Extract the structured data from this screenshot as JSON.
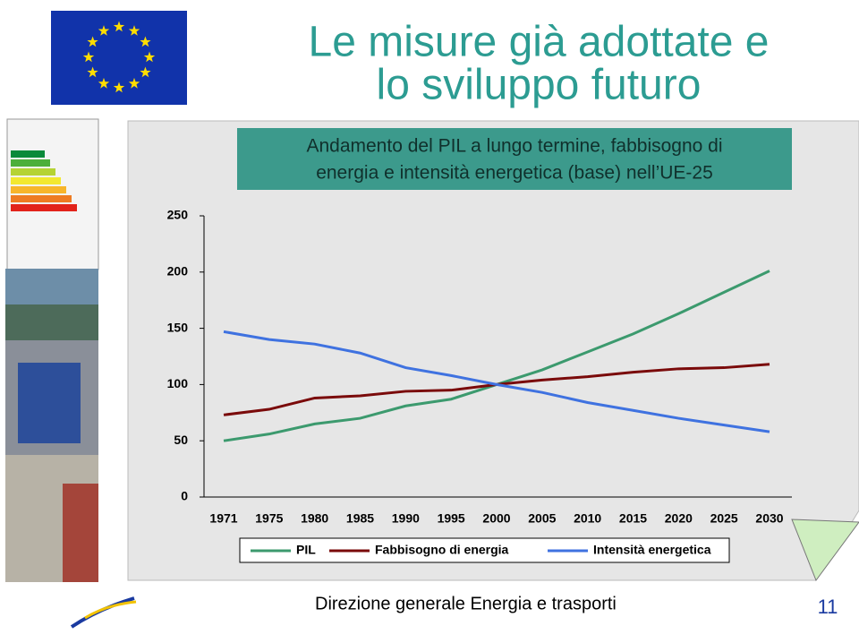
{
  "slide": {
    "title_line1": "Le misure già adottate e",
    "title_line2": "lo sviluppo futuro",
    "footer": "Direzione generale Energia e trasporti",
    "page_number": "11"
  },
  "chart_data": {
    "type": "line",
    "title_line1": "Andamento del PIL a lungo termine, fabbisogno di",
    "title_line2": "energia e intensità energetica (base) nell’UE-25",
    "categories": [
      "1971",
      "1975",
      "1980",
      "1985",
      "1990",
      "1995",
      "2000",
      "2005",
      "2010",
      "2015",
      "2020",
      "2025",
      "2030"
    ],
    "series": [
      {
        "name": "PIL",
        "color": "#3c9a6e",
        "values": [
          50,
          56,
          65,
          70,
          81,
          87,
          100,
          113,
          129,
          145,
          163,
          182,
          201
        ]
      },
      {
        "name": "Fabbisogno di energia",
        "color": "#7a0a0a",
        "values": [
          73,
          78,
          88,
          90,
          94,
          95,
          100,
          104,
          107,
          111,
          114,
          115,
          118
        ]
      },
      {
        "name": "Intensità energetica",
        "color": "#3f72e0",
        "values": [
          147,
          140,
          136,
          128,
          115,
          108,
          100,
          93,
          84,
          77,
          70,
          64,
          58
        ]
      }
    ],
    "ylim": [
      0,
      250
    ],
    "yticks": [
      0,
      50,
      100,
      150,
      200,
      250
    ],
    "grid": false,
    "legend": "bottom"
  }
}
